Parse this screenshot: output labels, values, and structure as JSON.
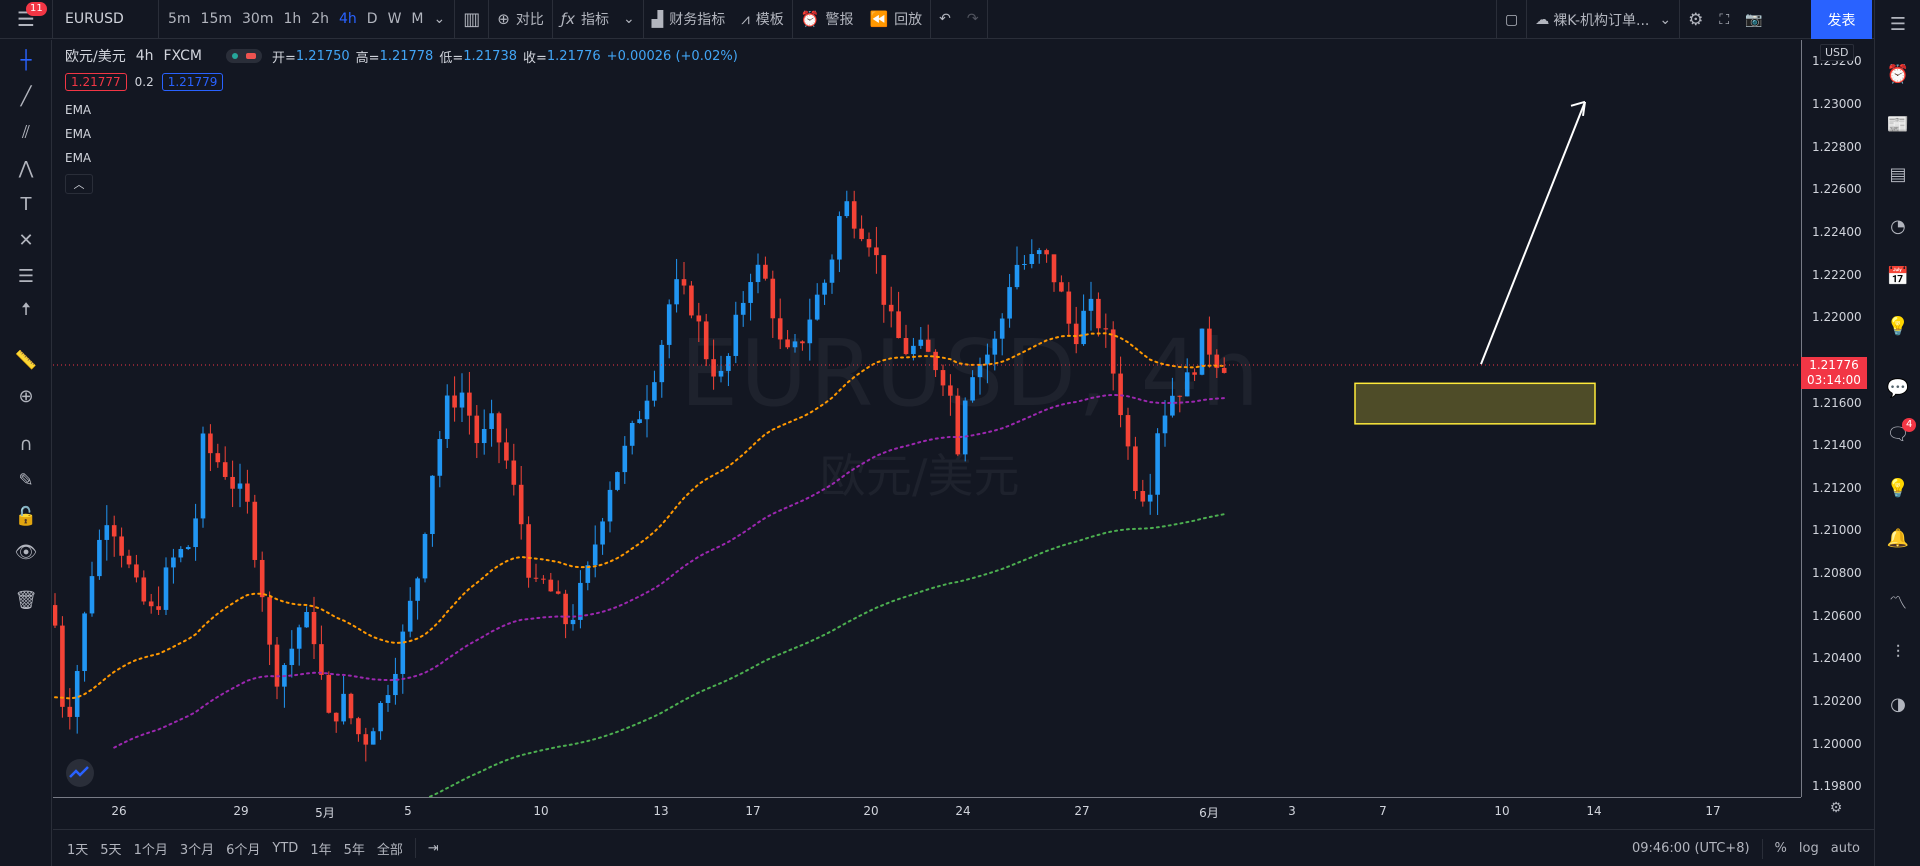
{
  "topbar": {
    "notification_count": "11",
    "symbol": "EURUSD",
    "intervals": [
      "5m",
      "15m",
      "30m",
      "1h",
      "2h",
      "4h",
      "D",
      "W",
      "M"
    ],
    "active_interval": "4h",
    "compare_label": "对比",
    "indicators_label": "指标",
    "financials_label": "财务指标",
    "templates_label": "模板",
    "alert_label": "警报",
    "replay_label": "回放",
    "layout_name": "裸K-机构订单...",
    "publish_label": "发表"
  },
  "legend": {
    "title": "欧元/美元",
    "interval": "4h",
    "exchange": "FXCM",
    "open_key": "开=",
    "open": "1.21750",
    "high_key": "高=",
    "high": "1.21778",
    "low_key": "低=",
    "low": "1.21738",
    "close_key": "收=",
    "close": "1.21776",
    "change": "+0.00026 (+0.02%)",
    "bid": "1.21777",
    "spread": "0.2",
    "ask": "1.21779",
    "indicators": [
      "EMA",
      "EMA",
      "EMA"
    ]
  },
  "watermark": {
    "symbol": "EURUSD, 4h",
    "name": "欧元/美元"
  },
  "price_axis": {
    "currency": "USD",
    "labels": [
      "1.23200",
      "1.23000",
      "1.22800",
      "1.22600",
      "1.22400",
      "1.22200",
      "1.22000",
      "1.21600",
      "1.21400",
      "1.21200",
      "1.21000",
      "1.20800",
      "1.20600",
      "1.20400",
      "1.20200",
      "1.20000",
      "1.19800"
    ],
    "last_price": "1.21776",
    "countdown": "03:14:00"
  },
  "time_axis": {
    "labels": [
      "26",
      "29",
      "5月",
      "5",
      "10",
      "13",
      "17",
      "20",
      "24",
      "27",
      "6月",
      "3",
      "7",
      "10",
      "14",
      "17"
    ]
  },
  "bottombar": {
    "ranges": [
      "1天",
      "5天",
      "1个月",
      "3个月",
      "6个月",
      "YTD",
      "1年",
      "5年",
      "全部"
    ],
    "clock": "09:46:00 (UTC+8)",
    "percent": "%",
    "log": "log",
    "auto": "auto"
  },
  "colors": {
    "up": "#2196f3",
    "down": "#f44336",
    "ema_fast": "#ff9800",
    "ema_mid": "#9c27b0",
    "ema_slow": "#4caf50",
    "zone": "#ffeb3b",
    "accent": "#2962ff"
  }
}
